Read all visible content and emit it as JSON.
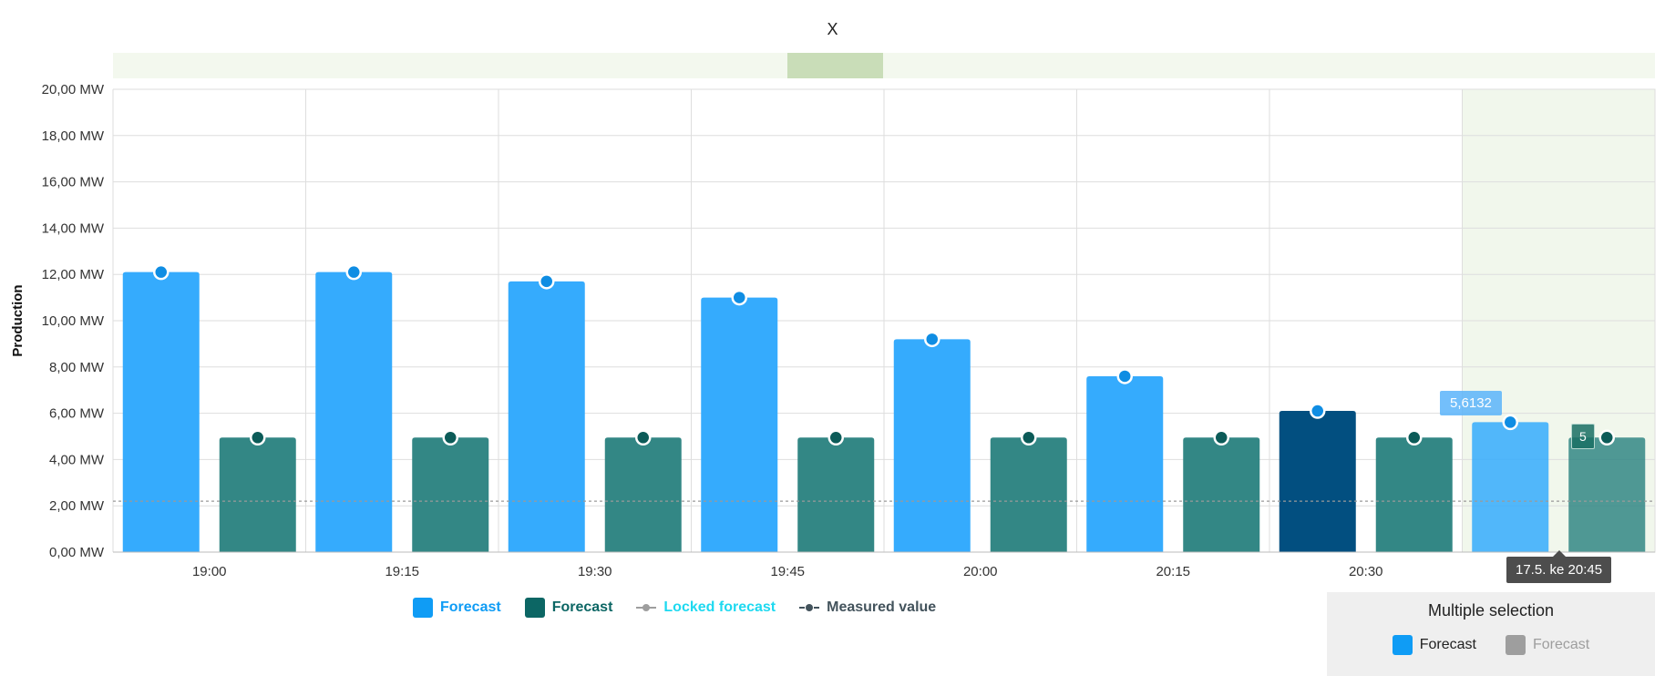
{
  "chart_data": {
    "type": "bar",
    "title": "X",
    "ylabel": "Production",
    "xlabel": "",
    "ylim": [
      0,
      20
    ],
    "yticks": [
      "0,00 MW",
      "2,00 MW",
      "4,00 MW",
      "6,00 MW",
      "8,00 MW",
      "10,00 MW",
      "12,00 MW",
      "14,00 MW",
      "16,00 MW",
      "18,00 MW",
      "20,00 MW"
    ],
    "categories": [
      "19:00",
      "19:15",
      "19:30",
      "19:45",
      "20:00",
      "20:15",
      "20:30",
      "20:45"
    ],
    "series": [
      {
        "name": "Forecast",
        "color": "#35abfd",
        "values": [
          12.1,
          12.1,
          11.7,
          11.0,
          9.2,
          7.6,
          6.1,
          5.6132
        ]
      },
      {
        "name": "Forecast",
        "color": "#338785",
        "values": [
          4.95,
          4.95,
          4.95,
          4.95,
          4.95,
          4.95,
          4.95,
          4.95
        ]
      }
    ],
    "highlight": {
      "category_index": 6,
      "series_index": 0,
      "color": "#024f80"
    },
    "reference_line_value": 2.2,
    "grid": true,
    "legend": {
      "position": "bottom",
      "items": [
        {
          "label": "Forecast",
          "color": "#0f9cf5",
          "kind": "bar"
        },
        {
          "label": "Forecast",
          "color": "#0c6664",
          "kind": "bar"
        },
        {
          "label": "Locked forecast",
          "color": "#1ed9f0",
          "kind": "line"
        },
        {
          "label": "Measured value",
          "color": "#43535c",
          "kind": "dashed-line"
        }
      ]
    },
    "tooltips": {
      "date": "17.5. ke 20:45",
      "forecast_value": "5,6132",
      "measured_value": "5"
    }
  },
  "multi_selection": {
    "title": "Multiple selection",
    "items": [
      {
        "label": "Forecast",
        "color": "#0f9cf5",
        "active": true
      },
      {
        "label": "Forecast",
        "color": "#9e9e9e",
        "active": false
      }
    ]
  }
}
